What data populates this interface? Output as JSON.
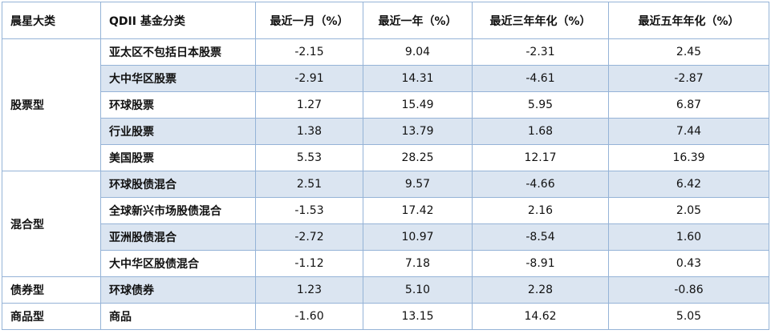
{
  "table": {
    "header": [
      "晨星大类",
      "QDII 基金分类",
      "最近一月（%）",
      "最近一年（%）",
      "最近三年年化（%）",
      "最近五年年化（%）"
    ],
    "groups": [
      {
        "category": "股票型",
        "rows": [
          [
            "亚太区不包括日本股票",
            "-2.15",
            "9.04",
            "-2.31",
            "2.45"
          ],
          [
            "大中华区股票",
            "-2.91",
            "14.31",
            "-4.61",
            "-2.87"
          ],
          [
            "环球股票",
            "1.27",
            "15.49",
            "5.95",
            "6.87"
          ],
          [
            "行业股票",
            "1.38",
            "13.79",
            "1.68",
            "7.44"
          ],
          [
            "美国股票",
            "5.53",
            "28.25",
            "12.17",
            "16.39"
          ]
        ]
      },
      {
        "category": "混合型",
        "rows": [
          [
            "环球股债混合",
            "2.51",
            "9.57",
            "-4.66",
            "6.42"
          ],
          [
            "全球新兴市场股债混合",
            "-1.53",
            "17.42",
            "2.16",
            "2.05"
          ],
          [
            "亚洲股债混合",
            "-2.72",
            "10.97",
            "-8.54",
            "1.60"
          ],
          [
            "大中华区股债混合",
            "-1.12",
            "7.18",
            "-8.91",
            "0.43"
          ]
        ]
      },
      {
        "category": "债券型",
        "rows": [
          [
            "环球债券",
            "1.23",
            "5.10",
            "2.28",
            "-0.86"
          ]
        ]
      },
      {
        "category": "商品型",
        "rows": [
          [
            "商品",
            "-1.60",
            "13.15",
            "14.62",
            "5.05"
          ]
        ]
      }
    ]
  }
}
